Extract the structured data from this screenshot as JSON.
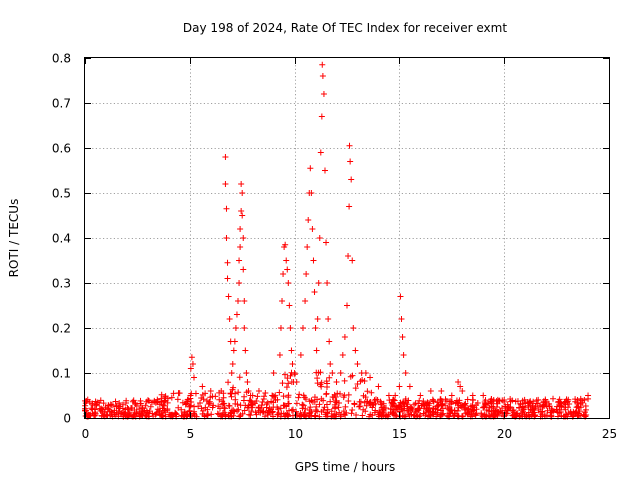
{
  "chart_data": {
    "type": "scatter",
    "title": "Day 198 of 2024, Rate Of TEC Index for receiver exmt",
    "xlabel": "GPS time / hours",
    "ylabel": "ROTI / TECUs",
    "xlim": [
      0,
      25
    ],
    "ylim": [
      0,
      0.8
    ],
    "xticks": [
      "0",
      "5",
      "10",
      "15",
      "20",
      "25"
    ],
    "yticks": [
      "0",
      "0.1",
      "0.2",
      "0.3",
      "0.4",
      "0.5",
      "0.6",
      "0.7",
      "0.8"
    ],
    "grid": true,
    "marker": "plus",
    "color": "#ff0000",
    "data_span_hours": [
      0,
      24
    ],
    "series": [
      {
        "x": [
          5.05,
          5.1,
          5.15,
          5.2,
          5.6,
          6.0,
          6.5,
          6.7,
          6.7,
          6.75,
          6.75,
          6.8,
          6.8,
          6.85,
          6.9,
          6.95,
          7.0,
          7.05,
          7.1,
          7.15,
          7.2,
          7.25,
          7.3,
          7.35,
          7.35,
          7.4,
          7.4,
          7.45,
          7.45,
          7.5,
          7.5,
          7.55,
          7.55,
          7.6,
          7.6,
          7.65,
          7.7,
          7.75,
          7.8,
          7.9,
          8.0,
          8.3,
          9.0,
          9.3,
          9.35,
          9.4,
          9.45,
          9.5,
          9.55,
          9.6,
          9.65,
          9.7,
          9.75,
          9.8,
          9.85,
          9.9,
          9.95,
          10.0,
          10.1,
          10.3,
          10.4,
          10.5,
          10.55,
          10.6,
          10.65,
          10.7,
          10.75,
          10.8,
          10.85,
          10.9,
          10.95,
          11.0,
          11.05,
          11.1,
          11.15,
          11.2,
          11.25,
          11.3,
          11.32,
          11.35,
          11.4,
          11.45,
          11.5,
          11.55,
          11.6,
          11.65,
          11.7,
          11.8,
          12.0,
          12.2,
          12.3,
          12.4,
          12.5,
          12.55,
          12.6,
          12.62,
          12.65,
          12.7,
          12.75,
          12.8,
          12.9,
          13.0,
          13.2,
          13.4,
          13.6,
          14.0,
          14.5,
          14.8,
          15.0,
          15.05,
          15.1,
          15.15,
          15.2,
          15.3,
          15.5,
          16.0,
          16.5,
          17.0,
          17.5,
          17.8,
          17.9,
          18.0,
          18.5,
          19.0,
          19.5,
          20.0,
          21.0,
          22.0,
          23.0,
          23.5,
          24.0
        ],
        "y": [
          0.11,
          0.135,
          0.12,
          0.09,
          0.07,
          0.06,
          0.06,
          0.58,
          0.52,
          0.465,
          0.4,
          0.345,
          0.31,
          0.27,
          0.22,
          0.17,
          0.1,
          0.12,
          0.15,
          0.17,
          0.2,
          0.23,
          0.26,
          0.3,
          0.35,
          0.38,
          0.42,
          0.46,
          0.52,
          0.5,
          0.45,
          0.4,
          0.33,
          0.26,
          0.2,
          0.15,
          0.1,
          0.08,
          0.06,
          0.05,
          0.05,
          0.06,
          0.1,
          0.14,
          0.2,
          0.26,
          0.32,
          0.38,
          0.385,
          0.35,
          0.33,
          0.3,
          0.25,
          0.2,
          0.15,
          0.12,
          0.08,
          0.1,
          0.08,
          0.14,
          0.2,
          0.26,
          0.32,
          0.38,
          0.44,
          0.5,
          0.555,
          0.5,
          0.42,
          0.35,
          0.28,
          0.2,
          0.15,
          0.22,
          0.3,
          0.4,
          0.59,
          0.67,
          0.785,
          0.76,
          0.72,
          0.55,
          0.39,
          0.3,
          0.22,
          0.17,
          0.12,
          0.1,
          0.08,
          0.1,
          0.14,
          0.18,
          0.25,
          0.36,
          0.47,
          0.605,
          0.57,
          0.53,
          0.35,
          0.2,
          0.15,
          0.12,
          0.1,
          0.1,
          0.09,
          0.07,
          0.05,
          0.05,
          0.07,
          0.27,
          0.22,
          0.18,
          0.14,
          0.1,
          0.07,
          0.05,
          0.06,
          0.06,
          0.05,
          0.08,
          0.07,
          0.06,
          0.05,
          0.05,
          0.04,
          0.04,
          0.035,
          0.035,
          0.035,
          0.04,
          0.05
        ]
      }
    ]
  }
}
